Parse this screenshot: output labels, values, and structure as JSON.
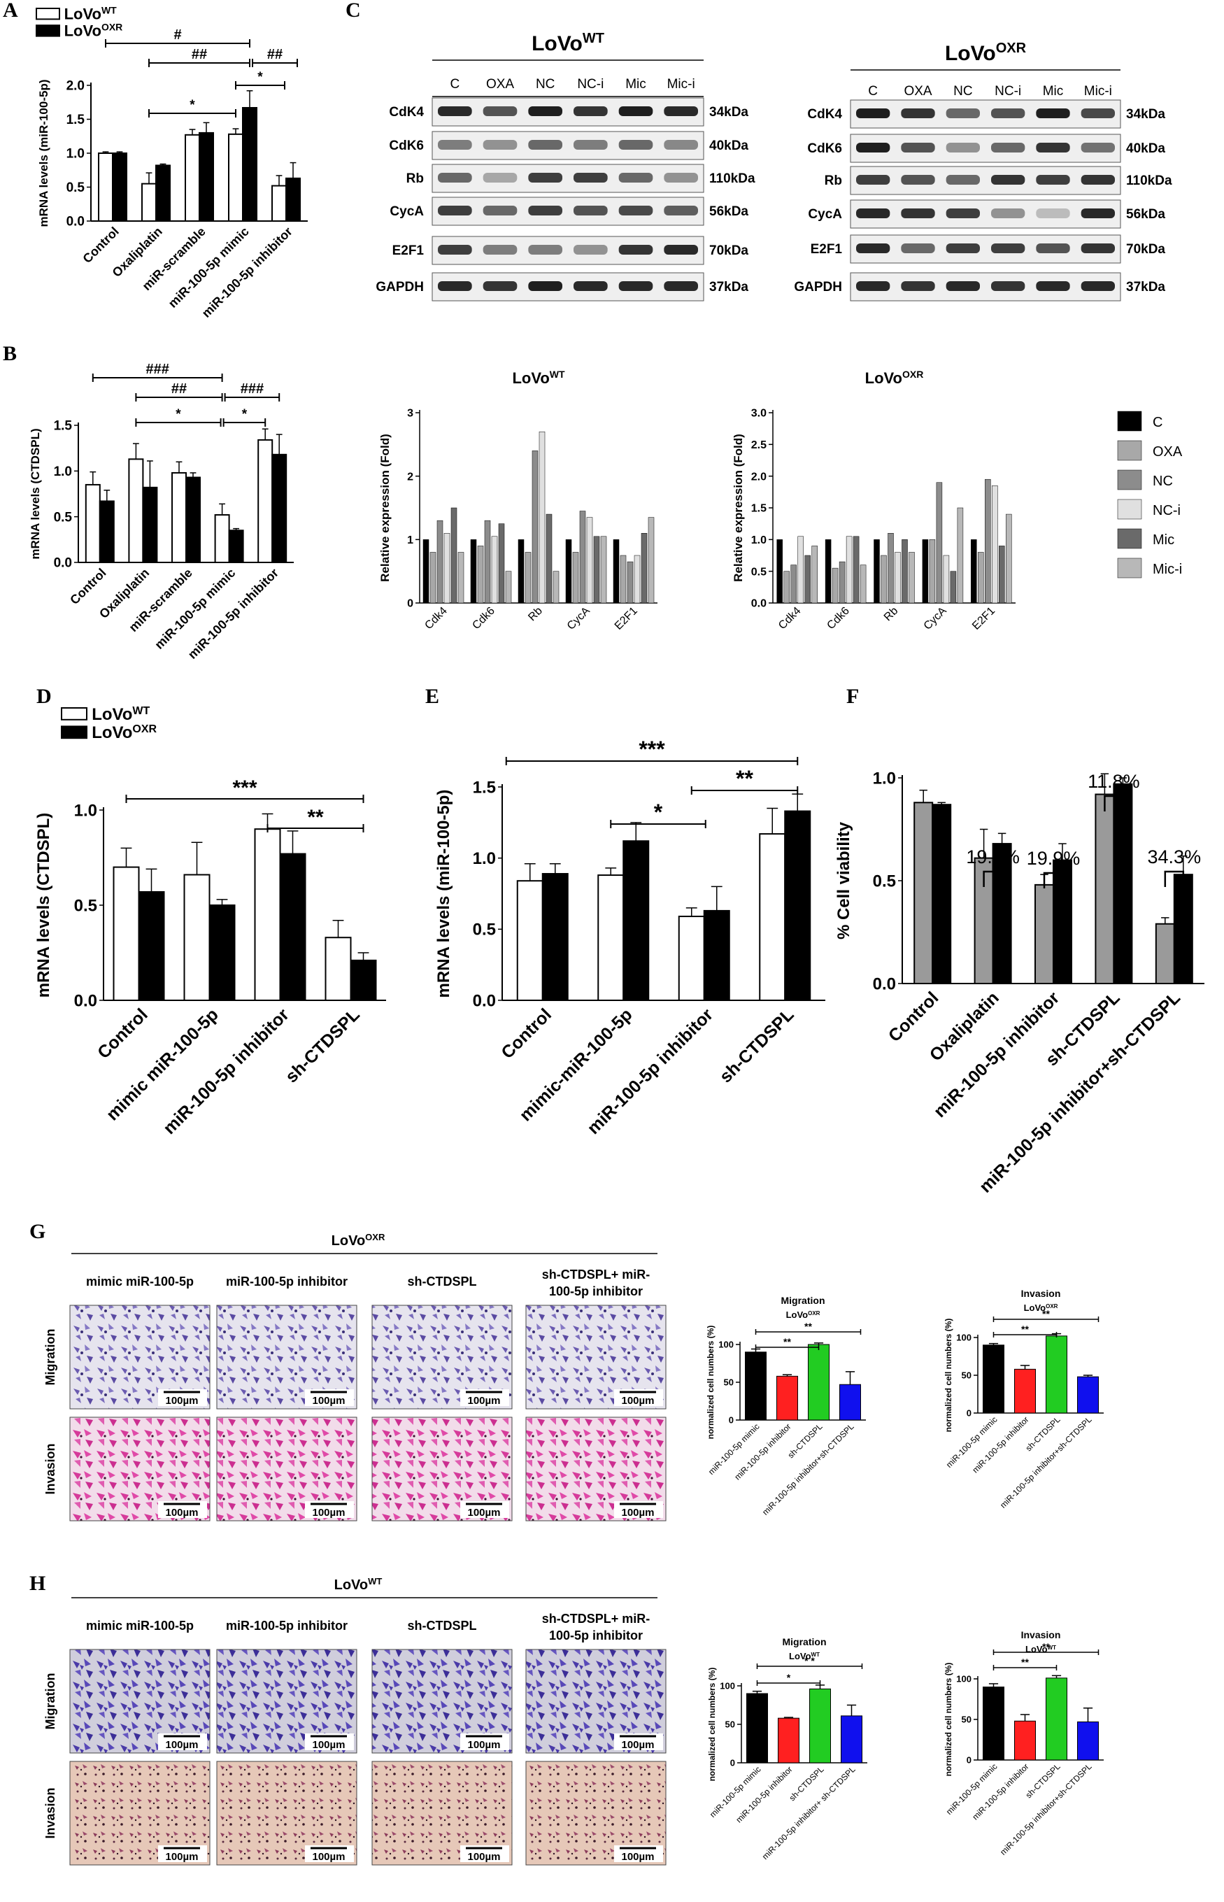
{
  "legend_wt_oxr": {
    "wt": "LoVo",
    "wt_sup": "WT",
    "oxr": "LoVo",
    "oxr_sup": "OXR"
  },
  "panel_labels": [
    "A",
    "B",
    "C",
    "D",
    "E",
    "F",
    "G",
    "H"
  ],
  "colors": {
    "wt": "#ffffff",
    "oxr": "#000000",
    "grey": "#9a9a9a",
    "red": "#ff2020",
    "green": "#22cc22",
    "blue": "#1010ee"
  },
  "panel_A": {
    "chart_data": {
      "type": "bar",
      "ylabel": "mRNA levels (miR-100-5p)",
      "ylim": [
        0,
        2.0
      ],
      "yticks": [
        "0.0",
        "0.5",
        "1.0",
        "1.5",
        "2.0"
      ],
      "categories": [
        "Control",
        "Oxaliplatin",
        "miR-scramble",
        "miR-100-5p mimic",
        "miR-100-5p inhibitor"
      ],
      "series": [
        {
          "name": "LoVoWT",
          "values": [
            1.0,
            0.55,
            1.27,
            1.28,
            0.52
          ],
          "errors": [
            0.02,
            0.16,
            0.08,
            0.08,
            0.15
          ]
        },
        {
          "name": "LoVoOXR",
          "values": [
            1.0,
            0.82,
            1.3,
            1.67,
            0.63
          ],
          "errors": [
            0.02,
            0.02,
            0.15,
            0.25,
            0.23
          ]
        }
      ],
      "annotations": [
        "#",
        "##",
        "*",
        "*",
        "##"
      ]
    }
  },
  "panel_B": {
    "chart_data": {
      "type": "bar",
      "ylabel": "mRNA levels (CTDSPL)",
      "ylim": [
        0,
        1.5
      ],
      "yticks": [
        "0.0",
        "0.5",
        "1.0",
        "1.5"
      ],
      "categories": [
        "Control",
        "Oxaliplatin",
        "miR-scramble",
        "miR-100-5p mimic",
        "miR-100-5p inhibitor"
      ],
      "series": [
        {
          "name": "LoVoWT",
          "values": [
            0.85,
            1.13,
            0.98,
            0.52,
            1.34
          ],
          "errors": [
            0.14,
            0.17,
            0.12,
            0.12,
            0.12
          ]
        },
        {
          "name": "LoVoOXR",
          "values": [
            0.67,
            0.82,
            0.93,
            0.35,
            1.18
          ],
          "errors": [
            0.12,
            0.29,
            0.05,
            0.02,
            0.22
          ]
        }
      ],
      "annotations": [
        "###",
        "##",
        "*",
        "*",
        "###"
      ]
    }
  },
  "panel_C": {
    "blot_wt_title": "LoVo",
    "blot_wt_sup": "WT",
    "blot_oxr_title": "LoVo",
    "blot_oxr_sup": "OXR",
    "lanes": [
      "C",
      "OXA",
      "NC",
      "NC-i",
      "Mic",
      "Mic-i"
    ],
    "proteins": [
      "CdK4",
      "CdK6",
      "Rb",
      "CycA",
      "E2F1",
      "GAPDH"
    ],
    "sizes": [
      "34kDa",
      "40kDa",
      "110kDa",
      "56kDa",
      "70kDa",
      "37kDa"
    ],
    "legend": [
      "C",
      "OXA",
      "NC",
      "NC-i",
      "Mic",
      "Mic-i"
    ],
    "legend_colors": [
      "#000000",
      "#a8a8a8",
      "#8c8c8c",
      "#e0e0e0",
      "#6a6a6a",
      "#b8b8b8"
    ],
    "chart_data": [
      {
        "type": "bar",
        "title": "LoVoWT",
        "ylabel": "Relative expression (Fold)",
        "ylim": [
          0,
          3
        ],
        "yticks": [
          "0",
          "1",
          "2",
          "3"
        ],
        "categories": [
          "Cdk4",
          "Cdk6",
          "Rb",
          "CycA",
          "E2F1"
        ],
        "series": [
          {
            "name": "C",
            "values": [
              1.0,
              1.0,
              1.0,
              1.0,
              1.0
            ]
          },
          {
            "name": "OXA",
            "values": [
              0.8,
              0.9,
              0.8,
              0.8,
              0.75
            ]
          },
          {
            "name": "NC",
            "values": [
              1.3,
              1.3,
              2.4,
              1.45,
              0.65
            ]
          },
          {
            "name": "NC-i",
            "values": [
              1.1,
              1.05,
              2.7,
              1.35,
              0.75
            ]
          },
          {
            "name": "Mic",
            "values": [
              1.5,
              1.25,
              1.4,
              1.05,
              1.1
            ]
          },
          {
            "name": "Mic-i",
            "values": [
              0.8,
              0.5,
              0.5,
              1.05,
              1.35
            ]
          }
        ]
      },
      {
        "type": "bar",
        "title": "LoVoOXR",
        "ylabel": "Relative expression (Fold)",
        "ylim": [
          0,
          3.0
        ],
        "yticks": [
          "0.0",
          "0.5",
          "1.0",
          "1.5",
          "2.0",
          "2.5",
          "3.0"
        ],
        "categories": [
          "Cdk4",
          "Cdk6",
          "Rb",
          "CycA",
          "E2F1"
        ],
        "series": [
          {
            "name": "C",
            "values": [
              1.0,
              1.0,
              1.0,
              1.0,
              1.0
            ]
          },
          {
            "name": "OXA",
            "values": [
              0.5,
              0.55,
              0.75,
              1.0,
              0.8
            ]
          },
          {
            "name": "NC",
            "values": [
              0.6,
              0.65,
              1.1,
              1.9,
              1.95
            ]
          },
          {
            "name": "NC-i",
            "values": [
              1.05,
              1.05,
              0.8,
              0.75,
              1.85
            ]
          },
          {
            "name": "Mic",
            "values": [
              0.75,
              1.05,
              1.0,
              0.5,
              0.9
            ]
          },
          {
            "name": "Mic-i",
            "values": [
              0.9,
              0.6,
              0.8,
              1.5,
              1.4
            ]
          }
        ]
      }
    ]
  },
  "panel_D": {
    "chart_data": {
      "type": "bar",
      "ylabel": "mRNA levels (CTDSPL)",
      "ylim": [
        0,
        1.0
      ],
      "yticks": [
        "0.0",
        "0.5",
        "1.0"
      ],
      "categories": [
        "Control",
        "mimic miR-100-5p",
        "miR-100-5p inhibitor",
        "sh-CTDSPL"
      ],
      "series": [
        {
          "name": "LoVoWT",
          "values": [
            0.7,
            0.66,
            0.9,
            0.33
          ],
          "errors": [
            0.1,
            0.17,
            0.08,
            0.09
          ]
        },
        {
          "name": "LoVoOXR",
          "values": [
            0.57,
            0.5,
            0.77,
            0.21
          ],
          "errors": [
            0.12,
            0.03,
            0.12,
            0.04
          ]
        }
      ],
      "annotations": [
        "***",
        "**"
      ]
    }
  },
  "panel_E": {
    "chart_data": {
      "type": "bar",
      "ylabel": "mRNA levels (miR-100-5p)",
      "ylim": [
        0,
        1.5
      ],
      "yticks": [
        "0.0",
        "0.5",
        "1.0",
        "1.5"
      ],
      "categories": [
        "Control",
        "mimic-miR-100-5p",
        "miR-100-5p inhibitor",
        "sh-CTDSPL"
      ],
      "series": [
        {
          "name": "LoVoWT",
          "values": [
            0.84,
            0.88,
            0.59,
            1.17
          ],
          "errors": [
            0.12,
            0.05,
            0.06,
            0.18
          ]
        },
        {
          "name": "LoVoOXR",
          "values": [
            0.89,
            1.12,
            0.63,
            1.33
          ],
          "errors": [
            0.07,
            0.13,
            0.17,
            0.12
          ]
        }
      ],
      "annotations": [
        "***",
        "**",
        "*"
      ]
    }
  },
  "panel_F": {
    "chart_data": {
      "type": "bar",
      "ylabel": "% Cell viability",
      "ylim": [
        0,
        1.0
      ],
      "yticks": [
        "0.0",
        "0.5",
        "1.0"
      ],
      "categories": [
        "Control",
        "Oxaliplatin",
        "miR-100-5p inhibitor",
        "sh-CTDSPL",
        "miR-100-5p inhibitor+sh-CTDSPL"
      ],
      "series": [
        {
          "name": "LoVoWT",
          "values": [
            0.88,
            0.61,
            0.48,
            0.92,
            0.29
          ],
          "errors": [
            0.06,
            0.14,
            0.05,
            0.1,
            0.03
          ]
        },
        {
          "name": "LoVoOXR",
          "values": [
            0.87,
            0.68,
            0.6,
            0.97,
            0.53
          ],
          "errors": [
            0.01,
            0.05,
            0.08,
            0.03,
            0.09
          ]
        }
      ],
      "annotations": [
        "19.8%",
        "19.9%",
        "11.8%",
        "34.3%"
      ]
    }
  },
  "panel_G": {
    "title": "LoVo",
    "title_sup": "OXR",
    "columns": [
      "mimic miR-100-5p",
      "miR-100-5p inhibitor",
      "sh-CTDSPL",
      "sh-CTDSPL+ miR-100-5p inhibitor"
    ],
    "rows": [
      "Migration",
      "Invasion"
    ],
    "scale": "100µm",
    "chart_data": [
      {
        "type": "bar",
        "title": "Migration",
        "subtitle": "LoVo",
        "subtitle_sup": "OXR",
        "ylabel": "normalized cell numbers (%)",
        "ylim": [
          0,
          100
        ],
        "yticks": [
          "0",
          "50",
          "100"
        ],
        "categories": [
          "miR-100-5p mimic",
          "miR-100-5p inhibitor",
          "sh-CTDSPL",
          "miR-100-5p inhibitor+sh-CTDSPL"
        ],
        "values": [
          90,
          58,
          100,
          47
        ],
        "errors": [
          4,
          2,
          2,
          17
        ],
        "annotations": [
          "**",
          "**"
        ]
      },
      {
        "type": "bar",
        "title": "Invasion",
        "subtitle": "LoVo",
        "subtitle_sup": "OXR",
        "ylabel": "normalized cell numbers (%)",
        "ylim": [
          0,
          100
        ],
        "yticks": [
          "0",
          "50",
          "100"
        ],
        "categories": [
          "miR-100-5p mimic",
          "miR-100-5p inhibitor",
          "sh-CTDSPL",
          "miR-100-5p inhibitor+sh-CTDSPL"
        ],
        "values": [
          90,
          58,
          102,
          48
        ],
        "errors": [
          2,
          5,
          3,
          2
        ],
        "annotations": [
          "**",
          "**"
        ]
      }
    ]
  },
  "panel_H": {
    "title": "LoVo",
    "title_sup": "WT",
    "columns": [
      "mimic miR-100-5p",
      "miR-100-5p inhibitor",
      "sh-CTDSPL",
      "sh-CTDSPL+ miR-100-5p inhibitor"
    ],
    "rows": [
      "Migration",
      "Invasion"
    ],
    "scale": "100µm",
    "chart_data": [
      {
        "type": "bar",
        "title": "Migration",
        "subtitle": "LoVo",
        "subtitle_sup": "WT",
        "ylabel": "normalized cell numbers (%)",
        "ylim": [
          0,
          100
        ],
        "yticks": [
          "0",
          "50",
          "100"
        ],
        "categories": [
          "miR-100-5p mimic",
          "miR-100-5p inhibitor",
          "sh-CTDSPL",
          "miR-100-5p inhibitor+ sh-CTDSPL"
        ],
        "values": [
          90,
          58,
          96,
          61
        ],
        "errors": [
          3,
          1,
          5,
          14
        ],
        "annotations": [
          "* *",
          "*"
        ]
      },
      {
        "type": "bar",
        "title": "Invasion",
        "subtitle": "LoVo",
        "subtitle_sup": "WT",
        "ylabel": "normalized cell numbers (%)",
        "ylim": [
          0,
          100
        ],
        "yticks": [
          "0",
          "50",
          "100"
        ],
        "categories": [
          "miR-100-5p mimic",
          "miR-100-5p inhibitor",
          "sh-CTDSPL",
          "miR-100-5p inhibitor+sh-CTDSPL"
        ],
        "values": [
          90,
          48,
          101,
          47
        ],
        "errors": [
          4,
          8,
          3,
          17
        ],
        "annotations": [
          "**",
          "**"
        ]
      }
    ]
  }
}
